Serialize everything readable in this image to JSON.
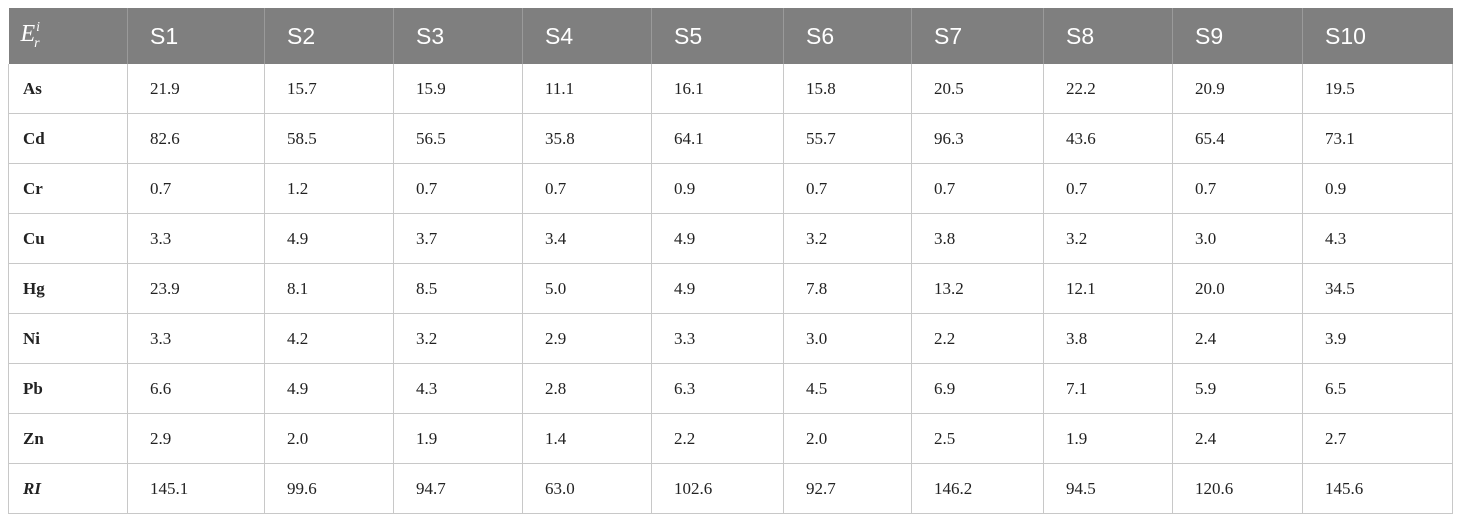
{
  "table": {
    "corner": {
      "base": "E",
      "sup": "i",
      "sub": "r"
    },
    "columns": [
      "S1",
      "S2",
      "S3",
      "S4",
      "S5",
      "S6",
      "S7",
      "S8",
      "S9",
      "S10"
    ],
    "rows": [
      {
        "label": "As",
        "values": [
          "21.9",
          "15.7",
          "15.9",
          "11.1",
          "16.1",
          "15.8",
          "20.5",
          "22.2",
          "20.9",
          "19.5"
        ]
      },
      {
        "label": "Cd",
        "values": [
          "82.6",
          "58.5",
          "56.5",
          "35.8",
          "64.1",
          "55.7",
          "96.3",
          "43.6",
          "65.4",
          "73.1"
        ]
      },
      {
        "label": "Cr",
        "values": [
          "0.7",
          "1.2",
          "0.7",
          "0.7",
          "0.9",
          "0.7",
          "0.7",
          "0.7",
          "0.7",
          "0.9"
        ]
      },
      {
        "label": "Cu",
        "values": [
          "3.3",
          "4.9",
          "3.7",
          "3.4",
          "4.9",
          "3.2",
          "3.8",
          "3.2",
          "3.0",
          "4.3"
        ]
      },
      {
        "label": "Hg",
        "values": [
          "23.9",
          "8.1",
          "8.5",
          "5.0",
          "4.9",
          "7.8",
          "13.2",
          "12.1",
          "20.0",
          "34.5"
        ]
      },
      {
        "label": "Ni",
        "values": [
          "3.3",
          "4.2",
          "3.2",
          "2.9",
          "3.3",
          "3.0",
          "2.2",
          "3.8",
          "2.4",
          "3.9"
        ]
      },
      {
        "label": "Pb",
        "values": [
          "6.6",
          "4.9",
          "4.3",
          "2.8",
          "6.3",
          "4.5",
          "6.9",
          "7.1",
          "5.9",
          "6.5"
        ]
      },
      {
        "label": "Zn",
        "values": [
          "2.9",
          "2.0",
          "1.9",
          "1.4",
          "2.2",
          "2.0",
          "2.5",
          "1.9",
          "2.4",
          "2.7"
        ]
      },
      {
        "label": "RI",
        "values": [
          "145.1",
          "99.6",
          "94.7",
          "63.0",
          "102.6",
          "92.7",
          "146.2",
          "94.5",
          "120.6",
          "145.6"
        ]
      }
    ]
  }
}
